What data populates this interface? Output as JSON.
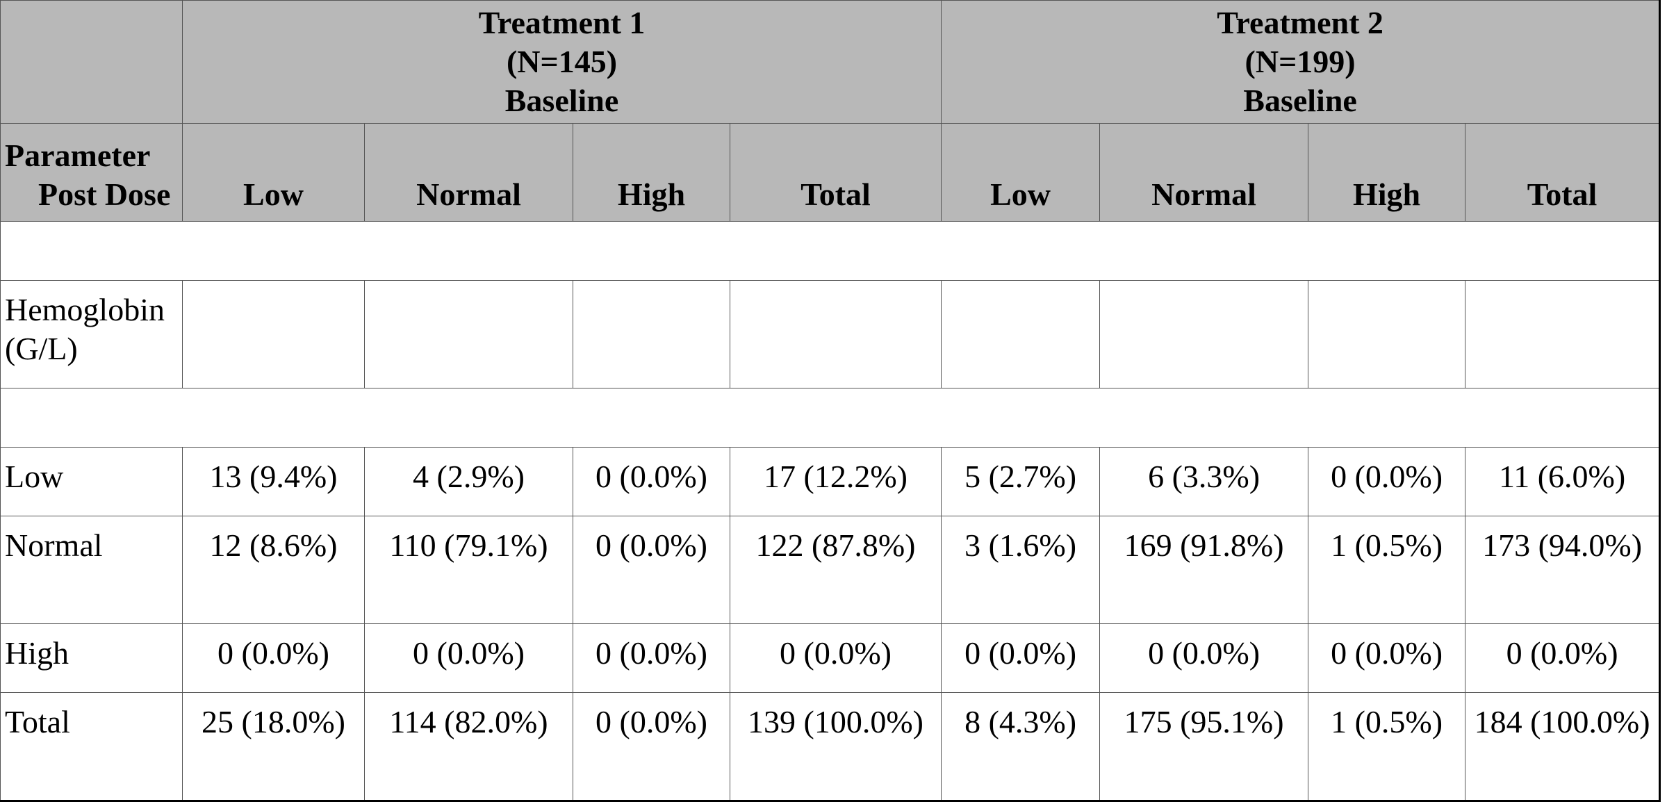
{
  "header": {
    "corner": "",
    "param_line1": "Parameter",
    "param_line2": "Post Dose",
    "groups": [
      {
        "name": "Treatment 1",
        "n": "(N=145)",
        "sub": "Baseline"
      },
      {
        "name": "Treatment 2",
        "n": "(N=199)",
        "sub": "Baseline"
      }
    ],
    "columns": [
      "Low",
      "Normal",
      "High",
      "Total",
      "Low",
      "Normal",
      "High",
      "Total"
    ]
  },
  "parameter": {
    "line1": "Hemoglobin",
    "line2": "(G/L)"
  },
  "rows": [
    {
      "label": "Low",
      "cells": [
        "13 (9.4%)",
        "4 (2.9%)",
        "0 (0.0%)",
        "17 (12.2%)",
        "5 (2.7%)",
        "6 (3.3%)",
        "0 (0.0%)",
        "11 (6.0%)"
      ]
    },
    {
      "label": "Normal",
      "cells": [
        "12 (8.6%)",
        "110 (79.1%)",
        "0 (0.0%)",
        "122 (87.8%)",
        "3 (1.6%)",
        "169 (91.8%)",
        "1 (0.5%)",
        "173 (94.0%)"
      ]
    },
    {
      "label": "High",
      "cells": [
        "0 (0.0%)",
        "0 (0.0%)",
        "0 (0.0%)",
        "0 (0.0%)",
        "0 (0.0%)",
        "0 (0.0%)",
        "0 (0.0%)",
        "0 (0.0%)"
      ]
    },
    {
      "label": "Total",
      "cells": [
        "25 (18.0%)",
        "114 (82.0%)",
        "0 (0.0%)",
        "139 (100.0%)",
        "8 (4.3%)",
        "175 (95.1%)",
        "1 (0.5%)",
        "184 (100.0%)"
      ]
    }
  ]
}
